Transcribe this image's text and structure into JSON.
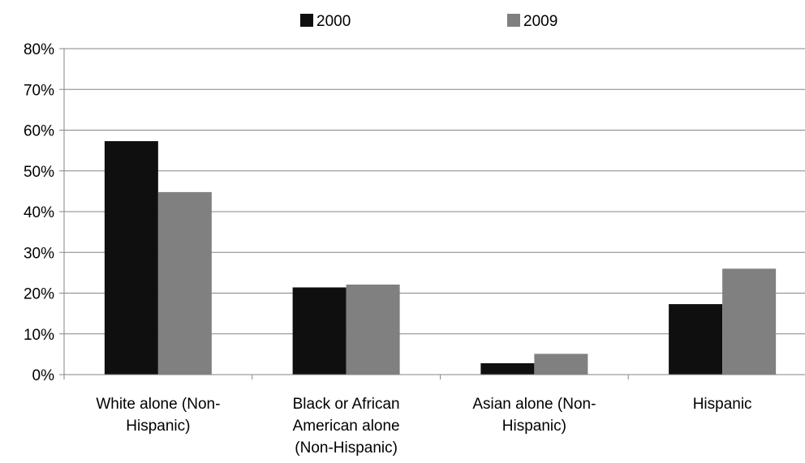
{
  "chart_data": {
    "type": "bar",
    "title": "",
    "xlabel": "",
    "ylabel": "",
    "categories": [
      [
        "White alone (Non-",
        "Hispanic)"
      ],
      [
        "Black or African",
        "American alone",
        "(Non-Hispanic)"
      ],
      [
        "Asian alone (Non-",
        "Hispanic)"
      ],
      [
        "Hispanic"
      ]
    ],
    "series": [
      {
        "name": "2000",
        "color": "#0f0f0f",
        "values": [
          57.3,
          21.4,
          2.8,
          17.3
        ]
      },
      {
        "name": "2009",
        "color": "#808080",
        "values": [
          44.8,
          22.1,
          5.1,
          26.0
        ]
      }
    ],
    "ylim": [
      0,
      80
    ],
    "yticks": [
      0,
      10,
      20,
      30,
      40,
      50,
      60,
      70,
      80
    ],
    "ytick_labels": [
      "0%",
      "10%",
      "20%",
      "30%",
      "40%",
      "50%",
      "60%",
      "70%",
      "80%"
    ],
    "grid": true,
    "legend_position": "top-center"
  }
}
